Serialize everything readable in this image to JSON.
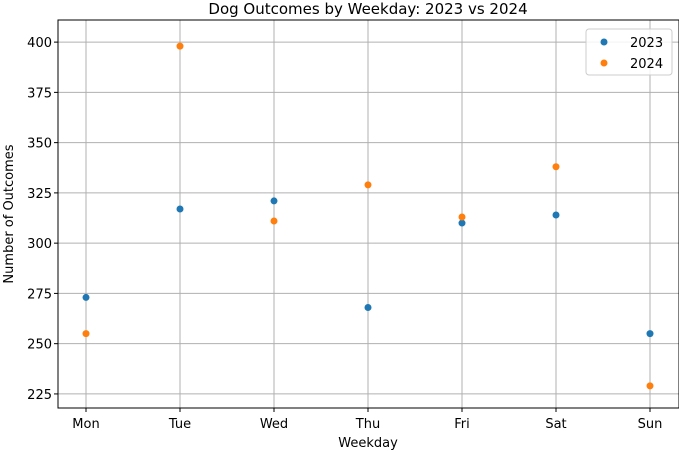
{
  "chart_data": {
    "type": "scatter",
    "title": "Dog Outcomes by Weekday: 2023 vs 2024",
    "xlabel": "Weekday",
    "ylabel": "Number of Outcomes",
    "categories": [
      "Mon",
      "Tue",
      "Wed",
      "Thu",
      "Fri",
      "Sat",
      "Sun"
    ],
    "ylim": [
      218,
      411
    ],
    "yticks": [
      225,
      250,
      275,
      300,
      325,
      350,
      375,
      400
    ],
    "grid": true,
    "legend_position": "top-right",
    "series": [
      {
        "name": "2023",
        "color": "#1f77b4",
        "values": [
          273,
          317,
          321,
          268,
          310,
          314,
          255
        ]
      },
      {
        "name": "2024",
        "color": "#ff7f0e",
        "values": [
          255,
          398,
          311,
          329,
          313,
          338,
          229
        ]
      }
    ]
  }
}
